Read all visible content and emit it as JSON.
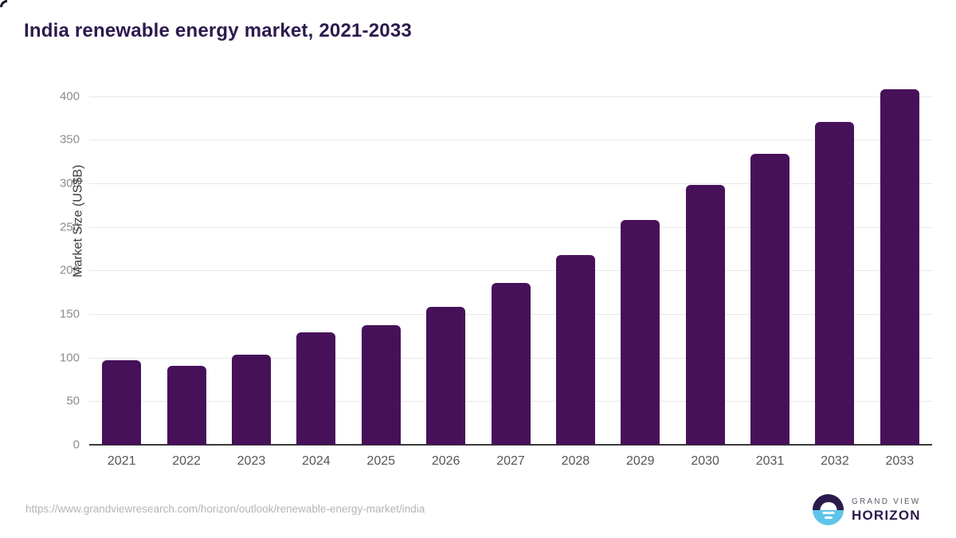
{
  "title": "India renewable energy market, 2021-2033",
  "footer": {
    "source_url": "https://www.grandviewresearch.com/horizon/outlook/renewable-energy-market/india",
    "logo": {
      "top_text": "GRAND VIEW",
      "bottom_text": "HORIZON"
    }
  },
  "colors": {
    "bar": "#471159",
    "title": "#2c1a4d",
    "gridline": "#e8e8e8",
    "axis_line": "#3a3a3a",
    "y_tick_label": "#8c8c8c",
    "x_tick_label": "#565656",
    "url_text": "#b5b5b5",
    "logo_blue": "#5fc4ea",
    "logo_purple": "#2c1a4d"
  },
  "chart_data": {
    "type": "bar",
    "title": "India renewable energy market, 2021-2033",
    "categories": [
      "2021",
      "2022",
      "2023",
      "2024",
      "2025",
      "2026",
      "2027",
      "2028",
      "2029",
      "2030",
      "2031",
      "2032",
      "2033"
    ],
    "values": [
      97,
      91,
      103,
      129,
      137,
      158,
      186,
      218,
      258,
      298,
      334,
      370,
      408
    ],
    "xlabel": "",
    "ylabel": "Market Size (US$B)",
    "ylim": [
      0,
      400
    ],
    "yticks": [
      0,
      50,
      100,
      150,
      200,
      250,
      300,
      350,
      400
    ],
    "grid": true,
    "legend": "none",
    "bar_color": "#471159"
  }
}
